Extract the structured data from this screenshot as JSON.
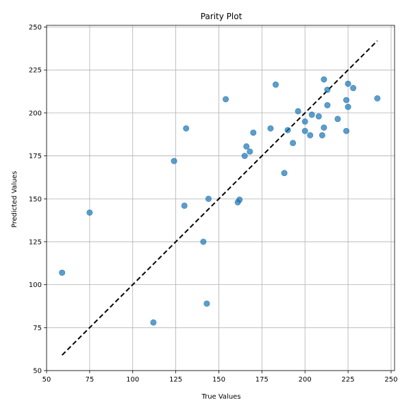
{
  "chart_data": {
    "type": "scatter",
    "title": "Parity Plot",
    "xlabel": "True Values",
    "ylabel": "Predicted Values",
    "xlim": [
      50,
      252
    ],
    "ylim": [
      50,
      251
    ],
    "xticks": [
      50,
      75,
      100,
      125,
      150,
      175,
      200,
      225,
      250
    ],
    "yticks": [
      50,
      75,
      100,
      125,
      150,
      175,
      200,
      225,
      250
    ],
    "grid": true,
    "legend": "none",
    "colors": {
      "points": "#1f77b4",
      "diagonal": "#000000"
    },
    "reference_line": {
      "style": "dashed",
      "from": [
        59,
        59
      ],
      "to": [
        242,
        242
      ]
    },
    "points": [
      [
        59,
        107
      ],
      [
        75,
        142
      ],
      [
        112,
        78
      ],
      [
        124,
        172
      ],
      [
        130,
        146
      ],
      [
        131,
        191
      ],
      [
        141,
        125
      ],
      [
        143,
        89
      ],
      [
        144,
        150
      ],
      [
        154,
        208
      ],
      [
        161,
        148
      ],
      [
        162,
        149.5
      ],
      [
        165,
        175
      ],
      [
        166,
        180.5
      ],
      [
        168,
        177.5
      ],
      [
        170,
        188.5
      ],
      [
        180,
        191
      ],
      [
        183,
        216.5
      ],
      [
        188,
        165
      ],
      [
        190,
        190
      ],
      [
        193,
        182.5
      ],
      [
        196,
        201
      ],
      [
        200,
        195
      ],
      [
        200,
        189.5
      ],
      [
        203,
        187
      ],
      [
        204,
        199
      ],
      [
        208,
        198
      ],
      [
        210,
        187
      ],
      [
        211,
        219.5
      ],
      [
        211,
        191.5
      ],
      [
        213,
        213.5
      ],
      [
        213,
        204.5
      ],
      [
        219,
        196.5
      ],
      [
        224,
        207.5
      ],
      [
        224,
        189.5
      ],
      [
        225,
        217
      ],
      [
        225,
        203.5
      ],
      [
        228,
        214.5
      ],
      [
        242,
        208.5
      ]
    ]
  }
}
